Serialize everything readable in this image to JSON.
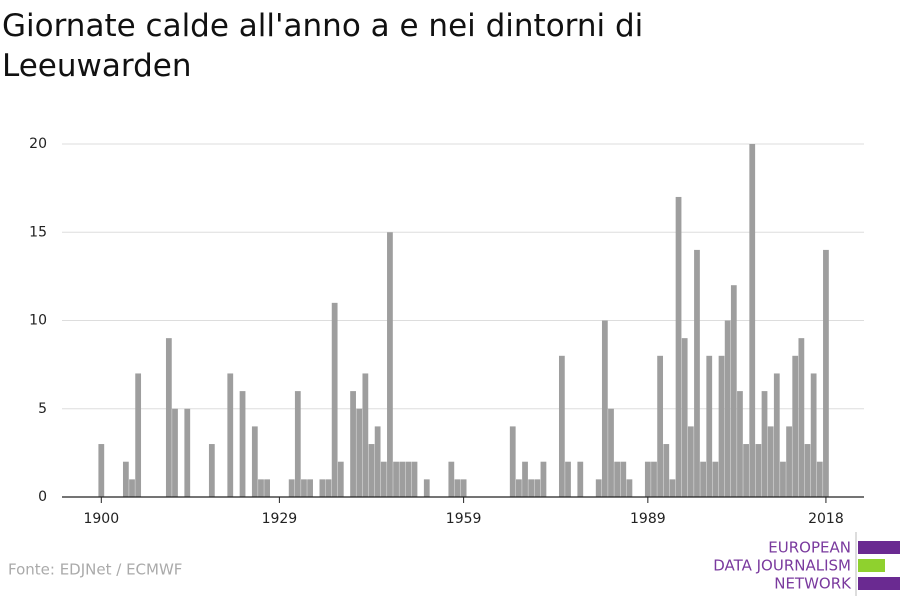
{
  "chart_data": {
    "type": "bar",
    "title": "Giornate calde all'anno a e nei dintorni di Leeuwarden",
    "source": "Fonte: EDJNet / ECMWF",
    "x": [
      1900,
      1901,
      1902,
      1903,
      1904,
      1905,
      1906,
      1907,
      1908,
      1909,
      1910,
      1911,
      1912,
      1913,
      1914,
      1915,
      1916,
      1917,
      1918,
      1919,
      1920,
      1921,
      1922,
      1923,
      1924,
      1925,
      1926,
      1927,
      1928,
      1929,
      1930,
      1931,
      1932,
      1933,
      1934,
      1935,
      1936,
      1937,
      1938,
      1939,
      1940,
      1941,
      1942,
      1943,
      1944,
      1945,
      1946,
      1947,
      1948,
      1949,
      1950,
      1951,
      1952,
      1953,
      1954,
      1955,
      1956,
      1957,
      1958,
      1959,
      1960,
      1961,
      1962,
      1963,
      1964,
      1965,
      1966,
      1967,
      1968,
      1969,
      1970,
      1971,
      1972,
      1973,
      1974,
      1975,
      1976,
      1977,
      1978,
      1979,
      1980,
      1981,
      1982,
      1983,
      1984,
      1985,
      1986,
      1987,
      1988,
      1989,
      1990,
      1991,
      1992,
      1993,
      1994,
      1995,
      1996,
      1997,
      1998,
      1999,
      2000,
      2001,
      2002,
      2003,
      2004,
      2005,
      2006,
      2007,
      2008,
      2009,
      2010,
      2011,
      2012,
      2013,
      2014,
      2015,
      2016,
      2017,
      2018
    ],
    "values": [
      3,
      0,
      0,
      0,
      2,
      1,
      7,
      0,
      0,
      0,
      0,
      9,
      5,
      0,
      5,
      0,
      0,
      0,
      3,
      0,
      0,
      7,
      0,
      6,
      0,
      4,
      1,
      1,
      0,
      0,
      0,
      1,
      6,
      1,
      1,
      0,
      1,
      1,
      11,
      2,
      0,
      6,
      5,
      7,
      3,
      4,
      2,
      15,
      2,
      2,
      2,
      2,
      0,
      1,
      0,
      0,
      0,
      2,
      1,
      1,
      0,
      0,
      0,
      0,
      0,
      0,
      0,
      4,
      1,
      2,
      1,
      1,
      2,
      0,
      0,
      8,
      2,
      0,
      2,
      0,
      0,
      1,
      10,
      5,
      2,
      2,
      1,
      0,
      0,
      2,
      2,
      8,
      3,
      1,
      17,
      9,
      4,
      14,
      2,
      8,
      2,
      8,
      10,
      12,
      6,
      3,
      20,
      3,
      6,
      4,
      7,
      2,
      4,
      8,
      9,
      3,
      7,
      2,
      14
    ],
    "color": "#9e9e9e",
    "xlim": [
      1893.6,
      2024.2
    ],
    "xticks": [
      1900,
      1929,
      1959,
      1989,
      2018
    ],
    "ylim": [
      0,
      20
    ],
    "yticks": [
      0,
      5,
      10,
      15,
      20
    ],
    "grid": true
  },
  "logo": {
    "lines": [
      "EUROPEAN",
      "DATA JOURNALISM",
      "NETWORK"
    ]
  }
}
